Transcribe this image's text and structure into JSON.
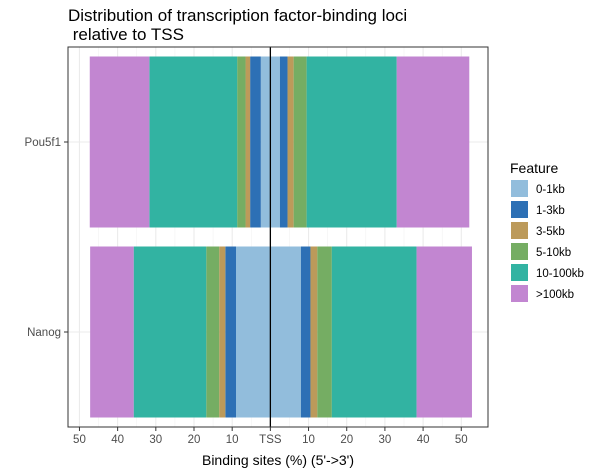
{
  "chart_data": {
    "type": "bar",
    "orientation": "horizontal",
    "stacking": "diverging",
    "title": [
      "Distribution of transcription factor-binding loci",
      " relative to TSS"
    ],
    "xlabel": "Binding sites (%) (5'->3')",
    "ylabel": "",
    "center_label": "TSS",
    "xlim": [
      -53,
      57
    ],
    "x_ticks": [
      -50,
      -40,
      -30,
      -20,
      -10,
      0,
      10,
      20,
      30,
      40,
      50
    ],
    "x_tick_labels": [
      "50",
      "40",
      "30",
      "20",
      "10",
      "TSS",
      "10",
      "20",
      "30",
      "40",
      "50"
    ],
    "categories": [
      "Pou5f1",
      "Nanog"
    ],
    "legend": {
      "title": "Feature",
      "position": "right"
    },
    "grid": true,
    "series": [
      {
        "name": "0-1kb",
        "color": "#92BDDC",
        "upstream": [
          2.5,
          9.0
        ],
        "downstream": [
          2.5,
          8.0
        ]
      },
      {
        "name": "1-3kb",
        "color": "#2D70B5",
        "upstream": [
          2.8,
          2.8
        ],
        "downstream": [
          2.0,
          2.5
        ]
      },
      {
        "name": "3-5kb",
        "color": "#BC9A5A",
        "upstream": [
          1.2,
          1.6
        ],
        "downstream": [
          1.6,
          1.8
        ]
      },
      {
        "name": "5-10kb",
        "color": "#75AD63",
        "upstream": [
          2.2,
          3.4
        ],
        "downstream": [
          3.4,
          3.8
        ]
      },
      {
        "name": "10-100kb",
        "color": "#32B3A2",
        "upstream": [
          23.0,
          19.0
        ],
        "downstream": [
          23.6,
          22.2
        ]
      },
      {
        "name": ">100kb",
        "color": "#C286D1",
        "upstream": [
          15.6,
          11.4
        ],
        "downstream": [
          19.0,
          14.5
        ]
      }
    ]
  }
}
